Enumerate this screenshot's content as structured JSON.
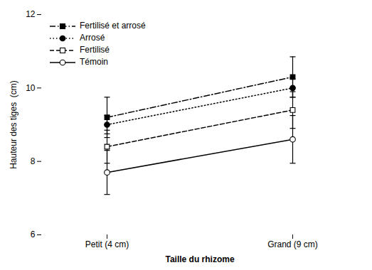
{
  "chart_data": {
    "type": "line",
    "xlabel": "Taille du rhizome",
    "ylabel": "Hauteur des tiges  (cm)",
    "categories": [
      "Petit (4 cm)",
      "Grand (9 cm)"
    ],
    "series": [
      {
        "name": "Fertilisé et arrosé",
        "color": "black",
        "marker": "filled-square",
        "line_style": "dashdot",
        "values": [
          9.2,
          10.3
        ],
        "yerr": [
          0.55,
          0.55
        ]
      },
      {
        "name": "Arrosé",
        "color": "black",
        "marker": "filled-circle",
        "line_style": "dotted",
        "values": [
          9.0,
          10.0
        ],
        "yerr": [
          0.25,
          0.25
        ]
      },
      {
        "name": "Fertilisé",
        "color": "black",
        "marker": "open-square",
        "line_style": "dashed",
        "values": [
          8.4,
          9.4
        ],
        "yerr": [
          0.45,
          0.5
        ]
      },
      {
        "name": "Témoin",
        "color": "black",
        "marker": "open-circle",
        "line_style": "solid",
        "values": [
          7.7,
          8.6
        ],
        "yerr": [
          0.6,
          0.65
        ]
      }
    ],
    "ylim": [
      6,
      12
    ],
    "yticks": [
      6,
      8,
      10,
      12
    ],
    "grid": false,
    "legend": "upper left"
  }
}
